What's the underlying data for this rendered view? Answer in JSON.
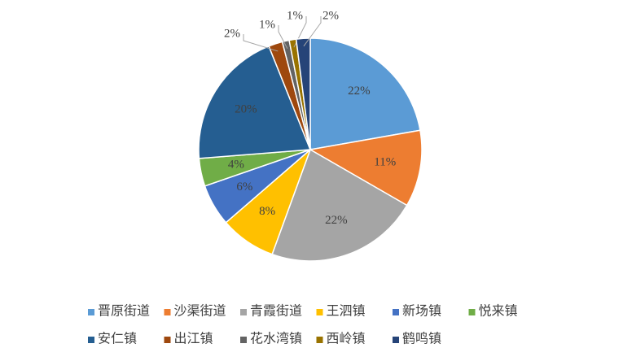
{
  "chart_data": {
    "type": "pie",
    "categories": [
      "晋原街道",
      "沙渠街道",
      "青霞街道",
      "王泗镇",
      "新场镇",
      "悦来镇",
      "安仁镇",
      "出江镇",
      "花水湾镇",
      "西岭镇",
      "鹤鸣镇"
    ],
    "values": [
      22,
      11,
      22,
      8,
      6,
      4,
      20,
      2,
      1,
      1,
      2
    ],
    "value_labels": [
      "22%",
      "11%",
      "22%",
      "8%",
      "6%",
      "4%",
      "20%",
      "2%",
      "1%",
      "1%",
      "2%"
    ],
    "colors": [
      "#5b9bd5",
      "#ed7d31",
      "#a5a5a5",
      "#ffc000",
      "#4472c4",
      "#70ad47",
      "#255e91",
      "#9e480e",
      "#636363",
      "#997300",
      "#264478"
    ],
    "legend": "bottom"
  }
}
